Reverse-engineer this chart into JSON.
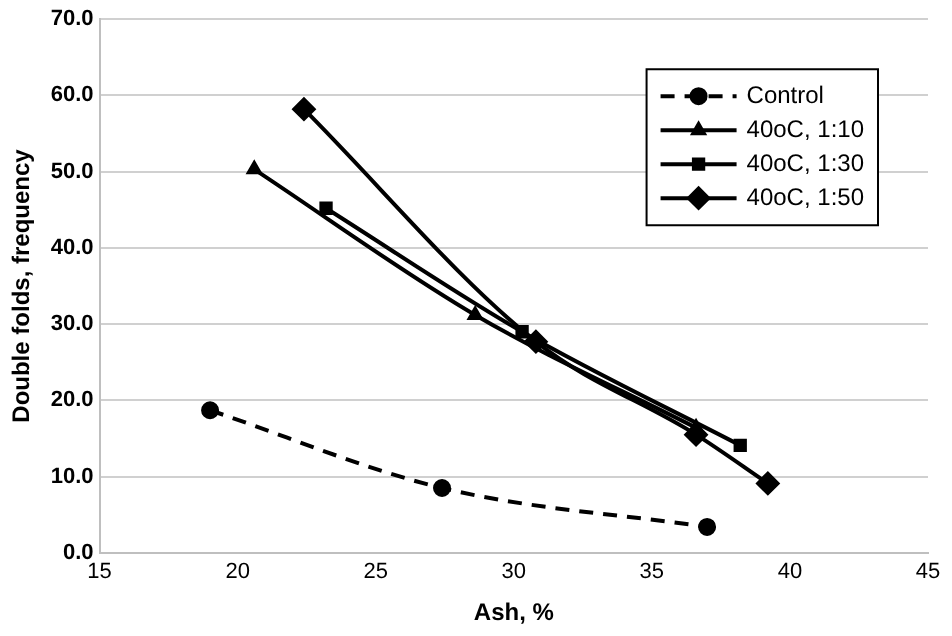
{
  "chart_data": {
    "type": "line",
    "xlabel": "Ash, %",
    "ylabel": "Double folds, frequency",
    "xlim": [
      15,
      45
    ],
    "xticks": [
      15,
      20,
      25,
      30,
      35,
      40,
      45
    ],
    "ylim": [
      0,
      70
    ],
    "yticks": [
      {
        "value": 0,
        "label": "0.0"
      },
      {
        "value": 10,
        "label": "10.0"
      },
      {
        "value": 20,
        "label": "20.0"
      },
      {
        "value": 30,
        "label": "30.0"
      },
      {
        "value": 40,
        "label": "40.0"
      },
      {
        "value": 50,
        "label": "50.0"
      },
      {
        "value": 60,
        "label": "60.0"
      },
      {
        "value": 70,
        "label": "70.0"
      }
    ],
    "grid": "y",
    "legend": "top right",
    "series": [
      {
        "name": "Control",
        "color": "#000000",
        "marker": "circle",
        "line_style": "dashed",
        "x": [
          19.0,
          27.4,
          37.0
        ],
        "values": [
          18.7,
          8.5,
          3.4
        ]
      },
      {
        "name": "40oC, 1:10",
        "color": "#000000",
        "marker": "triangle",
        "line_style": "solid",
        "x": [
          20.6,
          28.6,
          36.6
        ],
        "values": [
          50.3,
          31.2,
          16.4
        ]
      },
      {
        "name": "40oC, 1:30",
        "color": "#000000",
        "marker": "square",
        "line_style": "solid",
        "x": [
          23.2,
          30.3,
          38.2
        ],
        "values": [
          45.2,
          29.0,
          14.1
        ]
      },
      {
        "name": "40oC, 1:50",
        "color": "#000000",
        "marker": "diamond",
        "line_style": "solid",
        "x": [
          22.4,
          30.8,
          36.6,
          39.2
        ],
        "values": [
          58.2,
          27.7,
          15.5,
          9.1
        ]
      }
    ]
  }
}
